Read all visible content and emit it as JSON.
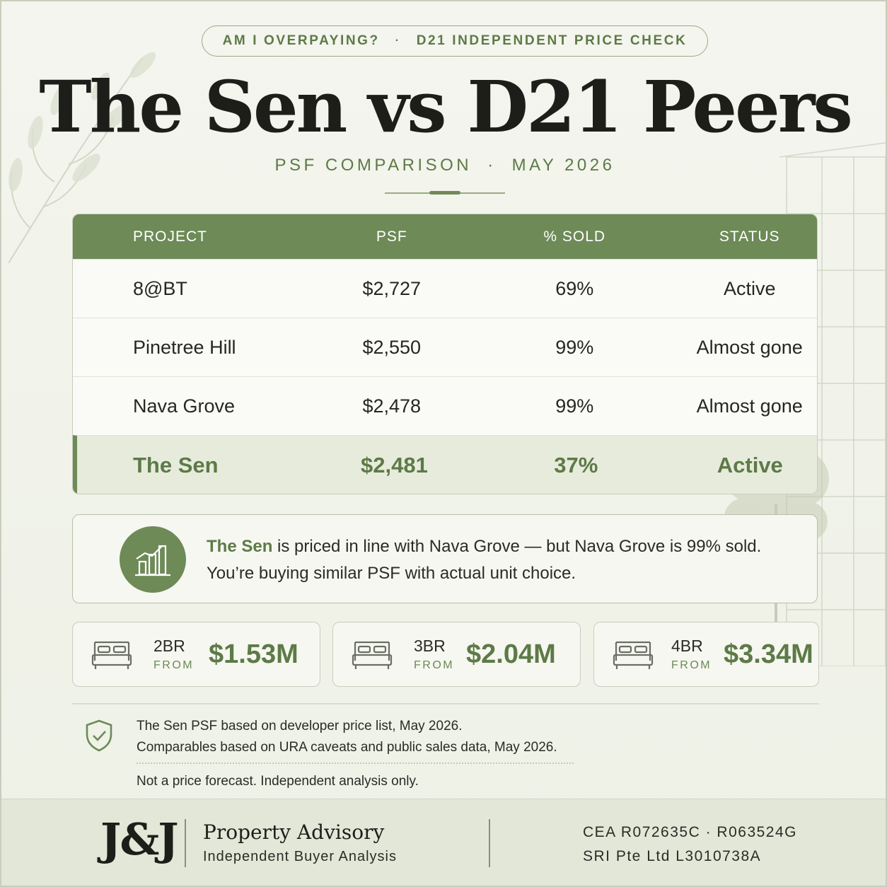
{
  "header": {
    "pill_left": "AM I OVERPAYING?",
    "pill_sep": "·",
    "pill_right": "D21 INDEPENDENT PRICE CHECK",
    "title": "The Sen vs D21 Peers",
    "subtitle_left": "PSF COMPARISON",
    "subtitle_sep": "·",
    "subtitle_right": "MAY 2026"
  },
  "table": {
    "columns": [
      "PROJECT",
      "PSF",
      "% SOLD",
      "STATUS"
    ],
    "rows": [
      {
        "project": "8@BT",
        "psf": "$2,727",
        "sold": "69%",
        "status": "Active"
      },
      {
        "project": "Pinetree Hill",
        "psf": "$2,550",
        "sold": "99%",
        "status": "Almost gone"
      },
      {
        "project": "Nava Grove",
        "psf": "$2,478",
        "sold": "99%",
        "status": "Almost gone"
      },
      {
        "project": "The Sen",
        "psf": "$2,481",
        "sold": "37%",
        "status": "Active"
      }
    ]
  },
  "callout": {
    "icon": "bar-chart-icon",
    "highlight": "The Sen",
    "line1_rest": " is priced in line with Nava Grove — but Nava Grove is 99% sold.",
    "line2": "You’re buying similar PSF with actual unit choice."
  },
  "prices": [
    {
      "type": "2BR",
      "label": "FROM",
      "price": "$1.53M",
      "icon": "bed-icon"
    },
    {
      "type": "3BR",
      "label": "FROM",
      "price": "$2.04M",
      "icon": "bed-icon"
    },
    {
      "type": "4BR",
      "label": "FROM",
      "price": "$3.34M",
      "icon": "bed-icon"
    }
  ],
  "notes": {
    "icon": "shield-check-icon",
    "line1": "The Sen PSF based on developer price list, May 2026.",
    "line2": "Comparables based on URA caveats and public sales data, May 2026.",
    "disclaimer": "Not a price forecast. Independent analysis only."
  },
  "footer": {
    "logo": "J&J",
    "brand": "Property Advisory",
    "brand_sub": "Independent Buyer Analysis",
    "reg_line1": "CEA R072635C  ·  R063524G",
    "reg_line2": "SRI Pte Ltd L3010738A"
  },
  "colors": {
    "accent": "#6d8a57",
    "accent_text": "#5d7a47",
    "background": "#f1f3ea",
    "footer_bg": "#e2e7d7"
  }
}
